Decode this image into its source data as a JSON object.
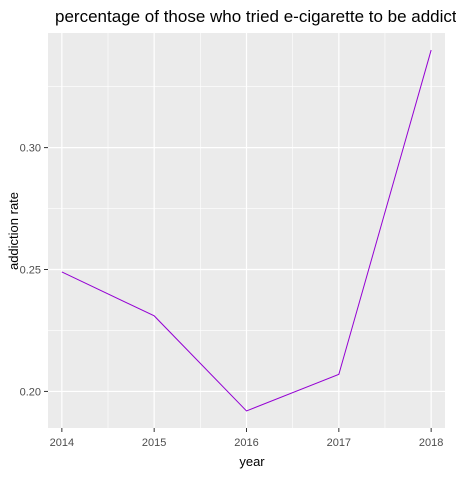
{
  "chart_data": {
    "type": "line",
    "title": "percentage of those who tried e-cigarette to be addicted",
    "xlabel": "year",
    "ylabel": "addiction rate",
    "x": [
      2014,
      2015,
      2016,
      2017,
      2018
    ],
    "series": [
      {
        "values": [
          0.249,
          0.231,
          0.192,
          0.207,
          0.34
        ]
      }
    ],
    "x_ticks": [
      "2014",
      "2015",
      "2016",
      "2017",
      "2018"
    ],
    "y_ticks": [
      "0.20",
      "0.25",
      "0.30"
    ],
    "y_tick_values": [
      0.2,
      0.25,
      0.3
    ],
    "xlim": [
      2013.85,
      2018.15
    ],
    "ylim": [
      0.185,
      0.347
    ],
    "grid": true,
    "legend": "none",
    "colors": {
      "line": "#9400D3",
      "panel": "#EBEBEB",
      "grid": "#FFFFFF",
      "text": "#4D4D4D",
      "title": "#000000"
    }
  }
}
